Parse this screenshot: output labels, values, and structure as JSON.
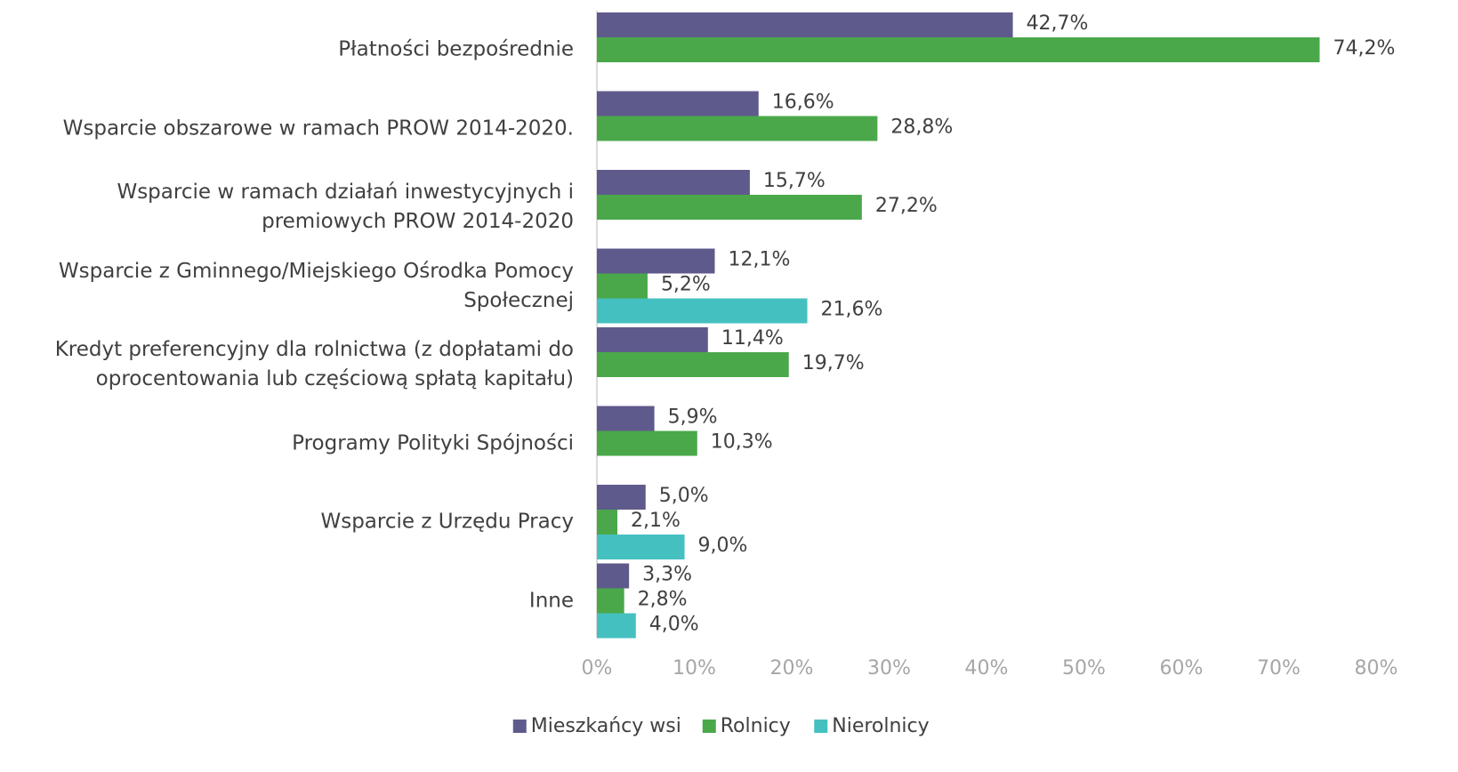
{
  "chart_data": {
    "type": "bar",
    "orientation": "horizontal",
    "categories": [
      "Płatności bezpośrednie",
      "Wsparcie obszarowe w ramach PROW 2014-2020.",
      "Wsparcie w ramach działań inwestycyjnych i\npremiowych PROW 2014-2020",
      "Wsparcie z Gminnego/Miejskiego Ośrodka Pomocy\nSpołecznej",
      "Kredyt preferencyjny dla rolnictwa (z dopłatami do\noprocentowania lub częściową spłatą kapitału)",
      "Programy Polityki Spójności",
      "Wsparcie z Urzędu Pracy",
      "Inne"
    ],
    "series": [
      {
        "name": "Mieszkańcy wsi",
        "color": "#5f5a8c",
        "values": [
          42.7,
          16.6,
          15.7,
          12.1,
          11.4,
          5.9,
          5.0,
          3.3
        ],
        "value_labels": [
          "42,7%",
          "16,6%",
          "15,7%",
          "12,1%",
          "11,4%",
          "5,9%",
          "5,0%",
          "3,3%"
        ]
      },
      {
        "name": "Rolnicy",
        "color": "#4aa84a",
        "values": [
          74.2,
          28.8,
          27.2,
          5.2,
          19.7,
          10.3,
          2.1,
          2.8
        ],
        "value_labels": [
          "74,2%",
          "28,8%",
          "27,2%",
          "5,2%",
          "19,7%",
          "10,3%",
          "2,1%",
          "2,8%"
        ]
      },
      {
        "name": "Nierolnicy",
        "color": "#45c0c0",
        "values": [
          null,
          null,
          null,
          21.6,
          null,
          null,
          9.0,
          4.0
        ],
        "value_labels": [
          null,
          null,
          null,
          "21,6%",
          null,
          null,
          "9,0%",
          "4,0%"
        ]
      }
    ],
    "xlim": [
      0,
      80
    ],
    "xticks": [
      {
        "value": 0,
        "label": "0%"
      },
      {
        "value": 10,
        "label": "10%"
      },
      {
        "value": 20,
        "label": "20%"
      },
      {
        "value": 30,
        "label": "30%"
      },
      {
        "value": 40,
        "label": "40%"
      },
      {
        "value": 50,
        "label": "50%"
      },
      {
        "value": 60,
        "label": "60%"
      },
      {
        "value": 70,
        "label": "70%"
      },
      {
        "value": 80,
        "label": "80%"
      }
    ],
    "grid": false,
    "legend": "bottom"
  }
}
